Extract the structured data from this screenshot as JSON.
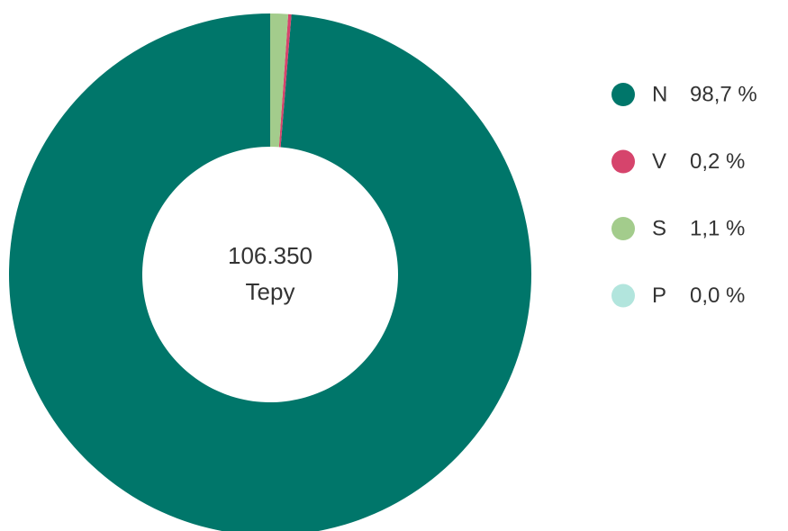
{
  "chart_data": {
    "type": "donut",
    "center_text": "106.350",
    "center_subtext": "Tepy",
    "categories": [
      "N",
      "V",
      "S",
      "P"
    ],
    "values": [
      98.7,
      0.2,
      1.1,
      0.0
    ],
    "value_labels": [
      "98,7 %",
      "0,2 %",
      "1,1 %",
      "0,0 %"
    ],
    "colors": [
      "#00766a",
      "#d6446c",
      "#a3cc8c",
      "#b2e5dd"
    ],
    "direction": "counterclockwise",
    "legend": "right"
  }
}
